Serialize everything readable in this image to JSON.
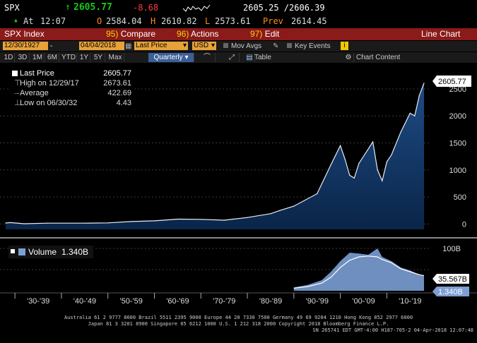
{
  "quote": {
    "ticker": "SPX",
    "arrow": "↑",
    "last": "2605.77",
    "change": "-8.68",
    "bid_ask": "2605.25 /2606.39",
    "at_label": "At",
    "time": "12:07",
    "open_label": "O",
    "open": "2584.04",
    "high_label": "H",
    "high": "2610.82",
    "low_label": "L",
    "low": "2573.61",
    "prev_label": "Prev",
    "prev": "2614.45"
  },
  "menu": {
    "security": "SPX Index",
    "compare_num": "95)",
    "compare": "Compare",
    "actions_num": "96)",
    "actions": "Actions",
    "edit_num": "97)",
    "edit": "Edit",
    "chart_type": "Line Chart"
  },
  "toolbar": {
    "start_date": "12/30/1927",
    "end_date": "04/04/2018",
    "field": "Last Price",
    "currency": "USD",
    "mov_avgs": "Mov Avgs",
    "key_events": "Key Events",
    "info_icon": "i",
    "periods": [
      "1D",
      "3D",
      "1M",
      "6M",
      "YTD",
      "1Y",
      "5Y",
      "Max"
    ],
    "frequency": "Quarterly",
    "table": "Table",
    "chart_content": "Chart Content"
  },
  "legend": {
    "last_price_label": "Last Price",
    "last_price": "2605.77",
    "high_label": "High on 12/29/17",
    "high": "2673.61",
    "average_label": "Average",
    "average": "422.69",
    "low_label": "Low on 06/30/32",
    "low": "4.43"
  },
  "volume_legend": {
    "label": "Volume",
    "value": "1.340B"
  },
  "price_labels": {
    "current": "2605.77",
    "vol_ma": "35.567B",
    "vol_current": "1.340B"
  },
  "colors": {
    "price_up": "#19c819",
    "price_down": "#ff3b3b",
    "menu_bg": "#8b1a1a",
    "field_bg": "#e8a23a",
    "area_fill": "#0c2d56",
    "volume_fill": "#6f8fc0"
  },
  "chart_data": [
    {
      "type": "area",
      "title": "SPX Index",
      "x": [
        "1928",
        "1929",
        "1932",
        "1937",
        "1945",
        "1950",
        "1955",
        "1960",
        "1965",
        "1970",
        "1975",
        "1980",
        "1985",
        "1987",
        "1990",
        "1995",
        "1998",
        "2000",
        "2001",
        "2002",
        "2003",
        "2004",
        "2007",
        "2008",
        "2009",
        "2010",
        "2011",
        "2013",
        "2015",
        "2016",
        "2017",
        "2018"
      ],
      "values": [
        18,
        25,
        4.4,
        15,
        15,
        20,
        45,
        58,
        90,
        85,
        70,
        120,
        190,
        250,
        330,
        560,
        1100,
        1450,
        1200,
        900,
        850,
        1120,
        1520,
        1000,
        800,
        1150,
        1280,
        1700,
        2050,
        2000,
        2380,
        2606
      ],
      "yticks": [
        0,
        500,
        1000,
        1500,
        2000,
        2500
      ],
      "xticks": [
        "'30-'39",
        "'40-'49",
        "'50-'59",
        "'60-'69",
        "'70-'79",
        "'80-'89",
        "'90-'99",
        "'00-'09",
        "'10-'19"
      ],
      "ylim": [
        -100,
        2800
      ],
      "grid": true
    },
    {
      "type": "area",
      "title": "Volume",
      "x": [
        "1990",
        "1993",
        "1996",
        "1998",
        "2000",
        "2002",
        "2004",
        "2006",
        "2008",
        "2009",
        "2011",
        "2013",
        "2015",
        "2017",
        "2018"
      ],
      "values": [
        8,
        14,
        25,
        45,
        70,
        90,
        88,
        85,
        100,
        80,
        70,
        55,
        48,
        38,
        36
      ],
      "moving_average": [
        6,
        10,
        18,
        32,
        55,
        72,
        80,
        82,
        80,
        74,
        66,
        52,
        45,
        38,
        35.6
      ],
      "ylim": [
        0,
        110
      ],
      "yticks": [
        50,
        100
      ],
      "ytick_labels": [
        "",
        "100B"
      ]
    }
  ],
  "footer": {
    "line1": "Australia 61 2 9777 8600 Brazil 5511 2395 9000 Europe 44 20 7330 7500 Germany 49 69 9204 1210 Hong Kong 852 2977 6000",
    "line2": "Japan 81 3 3201 8900          Singapore 65 6212 1000          U.S. 1 212 318 2000          Copyright 2018 Bloomberg Finance L.P.",
    "line3": "SN 265741 EDT  GMT-4:00 H187-705-2 04-Apr-2018 12:07:48"
  }
}
